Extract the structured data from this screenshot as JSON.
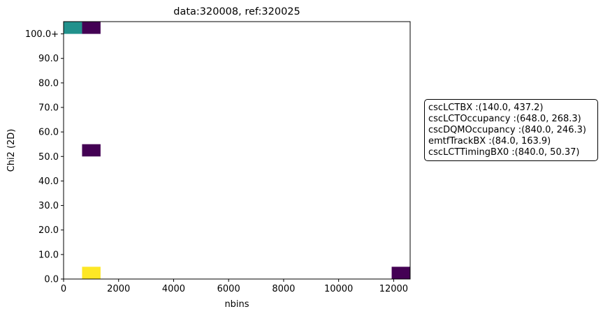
{
  "chart_data": {
    "type": "heatmap",
    "title": "data:320008, ref:320025",
    "xlabel": "nbins",
    "ylabel": "Chi2 (2D)",
    "xlim": [
      0,
      12600
    ],
    "ylim": [
      0,
      105
    ],
    "x_ticks": [
      0,
      2000,
      4000,
      6000,
      8000,
      10000,
      12000
    ],
    "x_tick_labels": [
      "0",
      "2000",
      "4000",
      "6000",
      "8000",
      "10000",
      "12000"
    ],
    "y_ticks": [
      0,
      10,
      20,
      30,
      40,
      50,
      60,
      70,
      80,
      90,
      100
    ],
    "y_tick_labels": [
      "0.0",
      "10.0",
      "20.0",
      "30.0",
      "40.0",
      "50.0",
      "60.0",
      "70.0",
      "80.0",
      "90.0",
      "100.0+"
    ],
    "grid": false,
    "cells": [
      {
        "x0": 0,
        "x1": 672,
        "y0": 100,
        "y1": 105,
        "count": 2,
        "color": "#21918c"
      },
      {
        "x0": 672,
        "x1": 1344,
        "y0": 100,
        "y1": 105,
        "count": 1,
        "color": "#440154"
      },
      {
        "x0": 672,
        "x1": 1344,
        "y0": 50,
        "y1": 55,
        "count": 1,
        "color": "#440154"
      },
      {
        "x0": 672,
        "x1": 1344,
        "y0": 0,
        "y1": 5,
        "count": 3,
        "color": "#fde725"
      },
      {
        "x0": 11928,
        "x1": 12600,
        "y0": 0,
        "y1": 5,
        "count": 1,
        "color": "#440154"
      }
    ],
    "legend_placement": "right",
    "legend_entries": [
      "cscLCTBX :(140.0, 437.2)",
      "cscLCTOccupancy :(648.0, 268.3)",
      "cscDQMOccupancy :(840.0, 246.3)",
      "emtfTrackBX :(84.0, 163.9)",
      "cscLCTTimingBX0 :(840.0, 50.37)"
    ]
  }
}
